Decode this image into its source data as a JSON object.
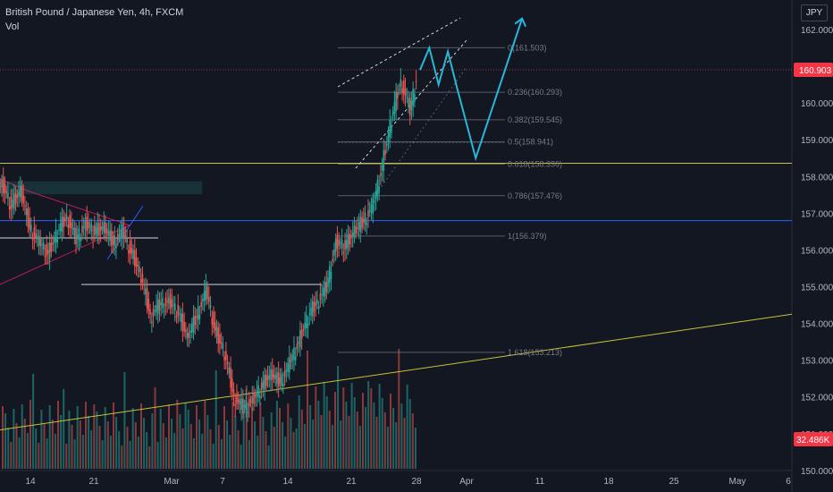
{
  "header": {
    "title": "British Pound / Japanese Yen, 4h, FXCM",
    "indicator": "Vol"
  },
  "price_scale": {
    "currency": "JPY",
    "ticks": [
      "162.000",
      "161.000",
      "160.000",
      "159.000",
      "158.000",
      "157.000",
      "156.000",
      "155.000",
      "154.000",
      "153.000",
      "152.000",
      "151.000",
      "150.000"
    ],
    "current_price": "160.903",
    "current_volume": "32.486K"
  },
  "time_axis": {
    "ticks": [
      "14",
      "21",
      "Mar",
      "7",
      "14",
      "21",
      "28",
      "Apr",
      "11",
      "18",
      "25",
      "May",
      "6"
    ]
  },
  "colors": {
    "background": "#131722",
    "up": "#26a69a",
    "down": "#ef5350",
    "projection": "#29b6d8",
    "horizontal_level": "#c8c23a",
    "blue_level": "#2962ff",
    "triangle": "#e91e63"
  },
  "fib_levels": [
    {
      "label": "0(161.503)",
      "price": 161.503
    },
    {
      "label": "0.236(160.293)",
      "price": 160.293
    },
    {
      "label": "0.382(159.545)",
      "price": 159.545
    },
    {
      "label": "0.5(158.941)",
      "price": 158.941
    },
    {
      "label": "0.618(158.336)",
      "price": 158.336
    },
    {
      "label": "0.786(157.476)",
      "price": 157.476
    },
    {
      "label": "1(156.379)",
      "price": 156.379
    },
    {
      "label": "1.618(153.213)",
      "price": 153.213
    }
  ],
  "chart_data": {
    "type": "candlestick",
    "title": "British Pound / Japanese Yen, 4h, FXCM",
    "ylim": [
      149.9,
      162.4
    ],
    "xlim": [
      "Feb 10",
      "May 6"
    ],
    "price_points": [
      [
        "Feb 10",
        157.5
      ],
      [
        "Feb 11",
        157.8
      ],
      [
        "Feb 12",
        157.2
      ],
      [
        "Feb 13",
        157.6
      ],
      [
        "Feb 14",
        156.6
      ],
      [
        "Feb 15",
        156.2
      ],
      [
        "Feb 16",
        155.9
      ],
      [
        "Feb 17",
        156.5
      ],
      [
        "Feb 18",
        156.9
      ],
      [
        "Feb 19",
        156.3
      ],
      [
        "Feb 20",
        156.7
      ],
      [
        "Feb 21",
        156.5
      ],
      [
        "Feb 22",
        156.6
      ],
      [
        "Feb 23",
        156.2
      ],
      [
        "Feb 24",
        156.5
      ],
      [
        "Feb 25",
        155.9
      ],
      [
        "Feb 26",
        155.3
      ],
      [
        "Feb 27",
        154.2
      ],
      [
        "Feb 28",
        154.5
      ],
      [
        "Feb 29",
        154.6
      ],
      [
        "Mar 1",
        154.3
      ],
      [
        "Mar 2",
        153.6
      ],
      [
        "Mar 3",
        154.2
      ],
      [
        "Mar 4",
        154.9
      ],
      [
        "Mar 5",
        153.8
      ],
      [
        "Mar 6",
        153.2
      ],
      [
        "Mar 7",
        152.0
      ],
      [
        "Mar 8",
        151.7
      ],
      [
        "Mar 9",
        151.9
      ],
      [
        "Mar 10",
        152.3
      ],
      [
        "Mar 11",
        152.6
      ],
      [
        "Mar 12",
        152.4
      ],
      [
        "Mar 13",
        152.9
      ],
      [
        "Mar 14",
        153.5
      ],
      [
        "Mar 15",
        154.2
      ],
      [
        "Mar 16",
        154.6
      ],
      [
        "Mar 17",
        155.0
      ],
      [
        "Mar 18",
        156.2
      ],
      [
        "Mar 19",
        156.1
      ],
      [
        "Mar 20",
        156.5
      ],
      [
        "Mar 21",
        156.8
      ],
      [
        "Mar 22",
        157.2
      ],
      [
        "Mar 23",
        158.3
      ],
      [
        "Mar 24",
        159.6
      ],
      [
        "Mar 25",
        160.6
      ],
      [
        "Mar 26",
        159.8
      ],
      [
        "Mar 27",
        161.1
      ],
      [
        "Mar 28",
        160.9
      ]
    ],
    "projection_path": [
      [
        "Mar 27",
        160.9
      ],
      [
        "Mar 28",
        161.5
      ],
      [
        "Mar 29",
        160.5
      ],
      [
        "Mar 30",
        161.4
      ],
      [
        "Mar 31",
        160.4
      ],
      [
        "Apr 2",
        158.5
      ],
      [
        "Apr 7",
        162.3
      ]
    ],
    "annotations": [
      "0(161.503)",
      "0.236(160.293)",
      "0.382(159.545)",
      "0.5(158.941)",
      "0.618(158.336)",
      "0.786(157.476)",
      "1(156.379)",
      "1.618(153.213)"
    ]
  }
}
